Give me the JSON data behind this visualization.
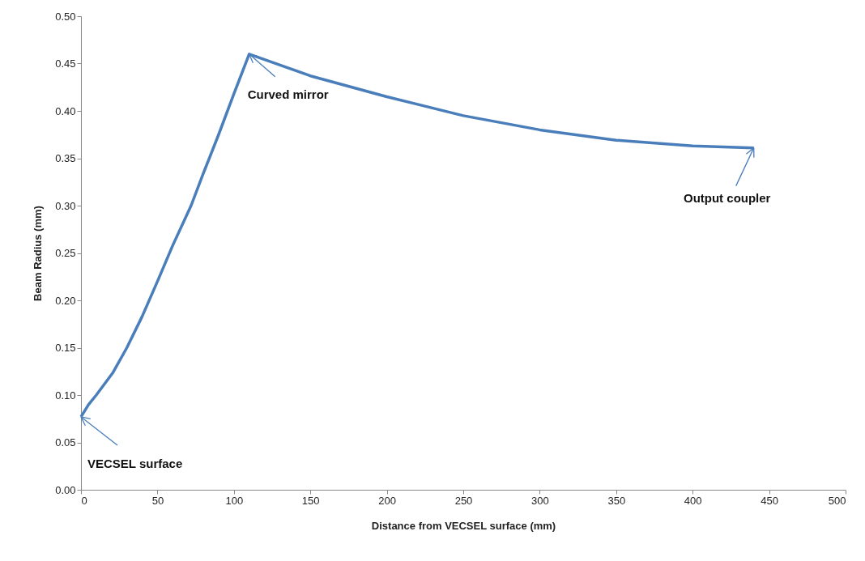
{
  "chart_data": {
    "type": "line",
    "xlabel": "Distance from VECSEL surface (mm)",
    "ylabel": "Beam Radius (mm)",
    "x": [
      0,
      5,
      10,
      21,
      30,
      40,
      50,
      60,
      72,
      80,
      90,
      100,
      110,
      150,
      200,
      250,
      300,
      350,
      400,
      440
    ],
    "series": [
      {
        "color": "#4a7ebb",
        "values": [
          0.077,
          0.09,
          0.1,
          0.124,
          0.15,
          0.183,
          0.22,
          0.258,
          0.3,
          0.334,
          0.375,
          0.418,
          0.46,
          0.437,
          0.415,
          0.395,
          0.38,
          0.369,
          0.363,
          0.361
        ]
      }
    ],
    "xlim": [
      0,
      500
    ],
    "xticks": [
      0,
      50,
      100,
      150,
      200,
      250,
      300,
      350,
      400,
      450,
      500
    ],
    "ylim": [
      0,
      0.5
    ],
    "yticks": [
      {
        "value": 0,
        "label": "0.00"
      },
      {
        "value": 0.05,
        "label": "0.05"
      },
      {
        "value": 0.1,
        "label": "0.10"
      },
      {
        "value": 0.15,
        "label": "0.15"
      },
      {
        "value": 0.2,
        "label": "0.20"
      },
      {
        "value": 0.25,
        "label": "0.25"
      },
      {
        "value": 0.3,
        "label": "0.30"
      },
      {
        "value": 0.35,
        "label": "0.35"
      },
      {
        "value": 0.4,
        "label": "0.40"
      },
      {
        "value": 0.45,
        "label": "0.45"
      },
      {
        "value": 0.5,
        "label": "0.50"
      }
    ],
    "annotations": [
      {
        "text": "VECSEL surface",
        "x": 0,
        "y": 0.077
      },
      {
        "text": "Curved mirror",
        "x": 110,
        "y": 0.46
      },
      {
        "text": "Output coupler",
        "x": 440,
        "y": 0.361
      }
    ],
    "grid": false,
    "marker": "none",
    "line_style": "solid"
  }
}
